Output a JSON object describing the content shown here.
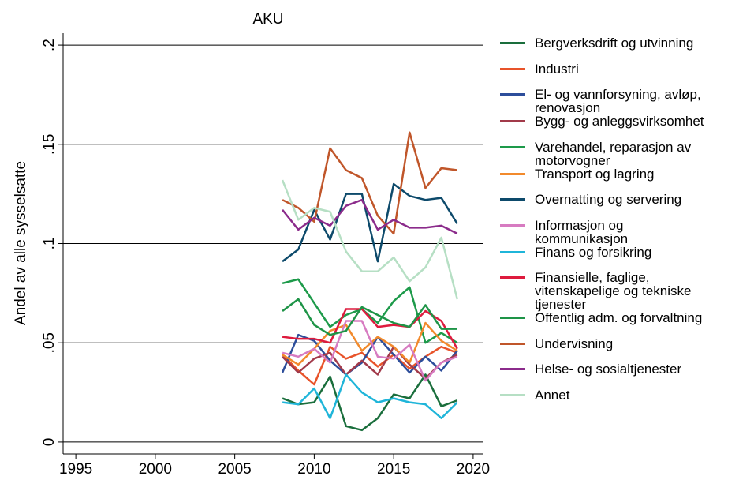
{
  "chart_data": {
    "type": "line",
    "title": "AKU",
    "y_label": "Andel av alle sysselsatte",
    "x": [
      2008,
      2009,
      2010,
      2011,
      2012,
      2013,
      2014,
      2015,
      2016,
      2017,
      2018,
      2019
    ],
    "xlim": [
      1994.2,
      2020.6
    ],
    "xticks": [
      1995,
      2000,
      2005,
      2010,
      2015,
      2020
    ],
    "ylim": [
      -0.006,
      0.206
    ],
    "yticks": [
      {
        "value": 0,
        "label": "0"
      },
      {
        "value": 0.05,
        "label": ".05"
      },
      {
        "value": 0.1,
        "label": ".1"
      },
      {
        "value": 0.15,
        "label": ".15"
      },
      {
        "value": 0.2,
        "label": ".2"
      }
    ],
    "grid": true,
    "series": [
      {
        "name": "Bergverksdrift og utvinning",
        "color": "#1a6e3c",
        "values": [
          0.022,
          0.019,
          0.02,
          0.033,
          0.008,
          0.006,
          0.012,
          0.024,
          0.022,
          0.034,
          0.018,
          0.021
        ]
      },
      {
        "name": "Industri",
        "color": "#e8532a",
        "values": [
          0.044,
          0.036,
          0.029,
          0.048,
          0.042,
          0.045,
          0.038,
          0.044,
          0.037,
          0.043,
          0.048,
          0.045
        ]
      },
      {
        "name": "El- og vannforsyning, avløp, renovasjon",
        "color": "#2d4e9b",
        "values": [
          0.035,
          0.054,
          0.051,
          0.041,
          0.034,
          0.04,
          0.053,
          0.044,
          0.035,
          0.043,
          0.036,
          0.046
        ]
      },
      {
        "name": "Bygg- og anleggsvirksomhet",
        "color": "#a23a4a",
        "values": [
          0.043,
          0.035,
          0.042,
          0.045,
          0.034,
          0.041,
          0.034,
          0.048,
          0.039,
          0.032,
          0.04,
          0.044
        ]
      },
      {
        "name": "Varehandel, reparasjon av motorvogner",
        "color": "#1d9a4a",
        "values": [
          0.08,
          0.082,
          0.07,
          0.058,
          0.064,
          0.067,
          0.06,
          0.071,
          0.078,
          0.05,
          0.055,
          0.05
        ]
      },
      {
        "name": "Transport og lagring",
        "color": "#f28a2c",
        "values": [
          0.044,
          0.039,
          0.047,
          0.056,
          0.059,
          0.046,
          0.053,
          0.048,
          0.04,
          0.06,
          0.051,
          0.046
        ]
      },
      {
        "name": "Overnatting og servering",
        "color": "#0d4a6b",
        "values": [
          0.091,
          0.097,
          0.117,
          0.102,
          0.125,
          0.125,
          0.091,
          0.13,
          0.124,
          0.122,
          0.123,
          0.11
        ]
      },
      {
        "name": "Informasjon og kommunikasjon",
        "color": "#d77bc1",
        "values": [
          0.045,
          0.043,
          0.047,
          0.04,
          0.061,
          0.061,
          0.043,
          0.042,
          0.049,
          0.031,
          0.04,
          0.043
        ]
      },
      {
        "name": "Finans og forsikring",
        "color": "#1fb5d9",
        "values": [
          0.02,
          0.019,
          0.027,
          0.012,
          0.034,
          0.025,
          0.02,
          0.022,
          0.02,
          0.019,
          0.012,
          0.02
        ]
      },
      {
        "name": "Finansielle, faglige, vitenskapelige og tekniske tjenester",
        "color": "#de1b3e",
        "values": [
          0.053,
          0.052,
          0.052,
          0.05,
          0.067,
          0.067,
          0.058,
          0.059,
          0.058,
          0.066,
          0.061,
          0.047
        ]
      },
      {
        "name": "Offentlig adm. og forvaltning",
        "color": "#1e9447",
        "values": [
          0.066,
          0.072,
          0.059,
          0.054,
          0.056,
          0.068,
          0.064,
          0.06,
          0.058,
          0.069,
          0.057,
          0.057
        ]
      },
      {
        "name": "Undervisning",
        "color": "#c0562a",
        "values": [
          0.122,
          0.118,
          0.111,
          0.148,
          0.137,
          0.133,
          0.114,
          0.105,
          0.156,
          0.128,
          0.138,
          0.137
        ]
      },
      {
        "name": "Helse- og sosialtjenester",
        "color": "#8b2b8b",
        "values": [
          0.117,
          0.107,
          0.113,
          0.109,
          0.119,
          0.122,
          0.107,
          0.112,
          0.108,
          0.108,
          0.109,
          0.105
        ]
      },
      {
        "name": "Annet",
        "color": "#b6dfc4",
        "values": [
          0.132,
          0.112,
          0.118,
          0.116,
          0.096,
          0.086,
          0.086,
          0.093,
          0.081,
          0.088,
          0.103,
          0.072
        ]
      }
    ]
  }
}
